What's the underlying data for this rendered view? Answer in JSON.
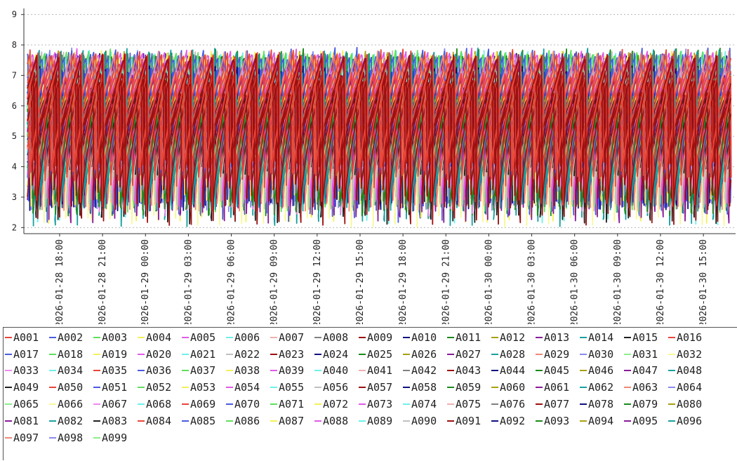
{
  "chart_data": {
    "type": "line",
    "title": "",
    "xlabel": "",
    "ylabel": "",
    "ylim": [
      1.8,
      9.2
    ],
    "yticks": [
      2,
      3,
      4,
      5,
      6,
      7,
      8,
      9
    ],
    "xlim": [
      "2026-01-28 15:30",
      "2026-01-30 17:15"
    ],
    "x_tick_labels": [
      "2026-01-28 18:00",
      "2026-01-28 21:00",
      "2026-01-29 00:00",
      "2026-01-29 03:00",
      "2026-01-29 06:00",
      "2026-01-29 09:00",
      "2026-01-29 12:00",
      "2026-01-29 15:00",
      "2026-01-29 18:00",
      "2026-01-29 21:00",
      "2026-01-30 00:00",
      "2026-01-30 03:00",
      "2026-01-30 06:00",
      "2026-01-30 09:00",
      "2026-01-30 12:00",
      "2026-01-30 15:00"
    ],
    "grid": "horizontal dotted",
    "legend_position": "bottom",
    "pattern": "sawtooth: each series rises from about 2-4.5 to about 6.5-7.9 then drops sharply; cycle roughly 1.5 hours",
    "series": [
      {
        "name": "A001",
        "color": "#e8443a"
      },
      {
        "name": "A002",
        "color": "#4a5ae0"
      },
      {
        "name": "A003",
        "color": "#5ee05a"
      },
      {
        "name": "A004",
        "color": "#f5f05a"
      },
      {
        "name": "A005",
        "color": "#e25ae8"
      },
      {
        "name": "A006",
        "color": "#6ef0ea"
      },
      {
        "name": "A007",
        "color": "#f0b0b0"
      },
      {
        "name": "A008",
        "color": "#808080"
      },
      {
        "name": "A009",
        "color": "#9c1010"
      },
      {
        "name": "A010",
        "color": "#101080"
      },
      {
        "name": "A011",
        "color": "#1a8a1a"
      },
      {
        "name": "A012",
        "color": "#a8a010"
      },
      {
        "name": "A013",
        "color": "#8a1a9a"
      },
      {
        "name": "A014",
        "color": "#1aa0a0"
      },
      {
        "name": "A015",
        "color": "#202020"
      },
      {
        "name": "A016",
        "color": "#e8443a"
      },
      {
        "name": "A017",
        "color": "#4a5ae0"
      },
      {
        "name": "A018",
        "color": "#5ee05a"
      },
      {
        "name": "A019",
        "color": "#f5f05a"
      },
      {
        "name": "A020",
        "color": "#e25ae8"
      },
      {
        "name": "A021",
        "color": "#6ef0ea"
      },
      {
        "name": "A022",
        "color": "#c0c0c0"
      },
      {
        "name": "A023",
        "color": "#9c1010"
      },
      {
        "name": "A024",
        "color": "#101080"
      },
      {
        "name": "A025",
        "color": "#1a8a1a"
      },
      {
        "name": "A026",
        "color": "#a8a010"
      },
      {
        "name": "A027",
        "color": "#8a1a9a"
      },
      {
        "name": "A028",
        "color": "#1aa0a0"
      },
      {
        "name": "A029",
        "color": "#f08878"
      },
      {
        "name": "A030",
        "color": "#8a8af0"
      },
      {
        "name": "A031",
        "color": "#8af08a"
      },
      {
        "name": "A032",
        "color": "#f8f898"
      },
      {
        "name": "A033",
        "color": "#f08af0"
      },
      {
        "name": "A034",
        "color": "#6ef0ea"
      },
      {
        "name": "A035",
        "color": "#e8443a"
      },
      {
        "name": "A036",
        "color": "#4a5ae0"
      },
      {
        "name": "A037",
        "color": "#5ee05a"
      },
      {
        "name": "A038",
        "color": "#f5f05a"
      },
      {
        "name": "A039",
        "color": "#e25ae8"
      },
      {
        "name": "A040",
        "color": "#6ef0ea"
      },
      {
        "name": "A041",
        "color": "#f0b0b0"
      },
      {
        "name": "A042",
        "color": "#808080"
      },
      {
        "name": "A043",
        "color": "#9c1010"
      },
      {
        "name": "A044",
        "color": "#101080"
      },
      {
        "name": "A045",
        "color": "#1a8a1a"
      },
      {
        "name": "A046",
        "color": "#a8a010"
      },
      {
        "name": "A047",
        "color": "#8a1a9a"
      },
      {
        "name": "A048",
        "color": "#1aa0a0"
      },
      {
        "name": "A049",
        "color": "#202020"
      },
      {
        "name": "A050",
        "color": "#e8443a"
      },
      {
        "name": "A051",
        "color": "#4a5ae0"
      },
      {
        "name": "A052",
        "color": "#5ee05a"
      },
      {
        "name": "A053",
        "color": "#f5f05a"
      },
      {
        "name": "A054",
        "color": "#e25ae8"
      },
      {
        "name": "A055",
        "color": "#6ef0ea"
      },
      {
        "name": "A056",
        "color": "#c0c0c0"
      },
      {
        "name": "A057",
        "color": "#9c1010"
      },
      {
        "name": "A058",
        "color": "#101080"
      },
      {
        "name": "A059",
        "color": "#1a8a1a"
      },
      {
        "name": "A060",
        "color": "#a8a010"
      },
      {
        "name": "A061",
        "color": "#8a1a9a"
      },
      {
        "name": "A062",
        "color": "#1aa0a0"
      },
      {
        "name": "A063",
        "color": "#f08878"
      },
      {
        "name": "A064",
        "color": "#8a8af0"
      },
      {
        "name": "A065",
        "color": "#8af08a"
      },
      {
        "name": "A066",
        "color": "#f8f898"
      },
      {
        "name": "A067",
        "color": "#f08af0"
      },
      {
        "name": "A068",
        "color": "#6ef0ea"
      },
      {
        "name": "A069",
        "color": "#e8443a"
      },
      {
        "name": "A070",
        "color": "#4a5ae0"
      },
      {
        "name": "A071",
        "color": "#5ee05a"
      },
      {
        "name": "A072",
        "color": "#f5f05a"
      },
      {
        "name": "A073",
        "color": "#e25ae8"
      },
      {
        "name": "A074",
        "color": "#6ef0ea"
      },
      {
        "name": "A075",
        "color": "#f0b0b0"
      },
      {
        "name": "A076",
        "color": "#808080"
      },
      {
        "name": "A077",
        "color": "#9c1010"
      },
      {
        "name": "A078",
        "color": "#101080"
      },
      {
        "name": "A079",
        "color": "#1a8a1a"
      },
      {
        "name": "A080",
        "color": "#a8a010"
      },
      {
        "name": "A081",
        "color": "#8a1a9a"
      },
      {
        "name": "A082",
        "color": "#1aa0a0"
      },
      {
        "name": "A083",
        "color": "#202020"
      },
      {
        "name": "A084",
        "color": "#e8443a"
      },
      {
        "name": "A085",
        "color": "#4a5ae0"
      },
      {
        "name": "A086",
        "color": "#5ee05a"
      },
      {
        "name": "A087",
        "color": "#f5f05a"
      },
      {
        "name": "A088",
        "color": "#e25ae8"
      },
      {
        "name": "A089",
        "color": "#6ef0ea"
      },
      {
        "name": "A090",
        "color": "#c0c0c0"
      },
      {
        "name": "A091",
        "color": "#9c1010"
      },
      {
        "name": "A092",
        "color": "#101080"
      },
      {
        "name": "A093",
        "color": "#1a8a1a"
      },
      {
        "name": "A094",
        "color": "#a8a010"
      },
      {
        "name": "A095",
        "color": "#8a1a9a"
      },
      {
        "name": "A096",
        "color": "#1aa0a0"
      },
      {
        "name": "A097",
        "color": "#f08878"
      },
      {
        "name": "A098",
        "color": "#8a8af0"
      },
      {
        "name": "A099",
        "color": "#8af08a"
      }
    ]
  }
}
